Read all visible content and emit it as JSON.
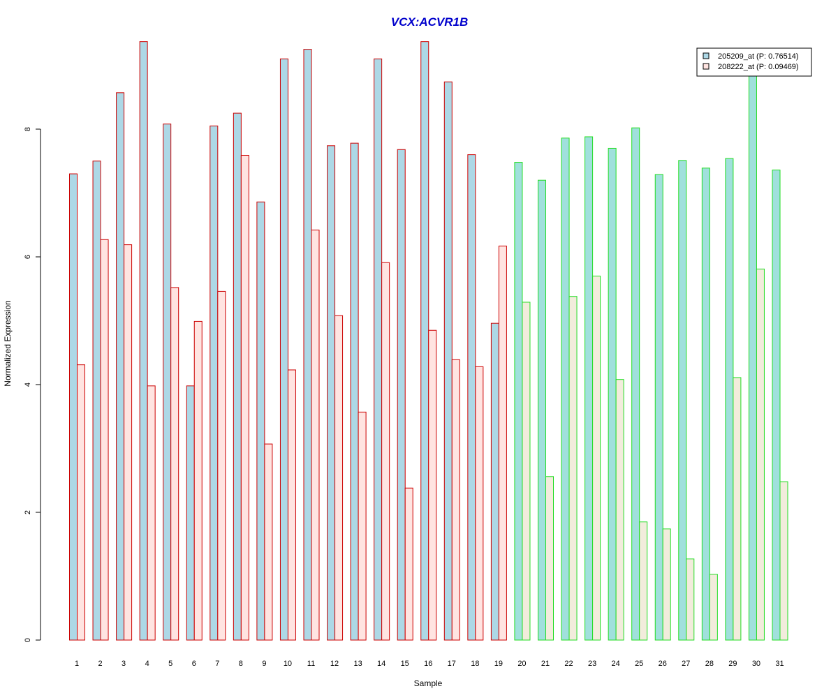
{
  "chart_data": {
    "type": "bar",
    "title": "VCX:ACVR1B",
    "title_color": "#0000cc",
    "xlabel": "Sample",
    "ylabel": "Normalized Expression",
    "ylim": [
      0,
      9.5
    ],
    "yticks": [
      0,
      2,
      4,
      6,
      8
    ],
    "grid": false,
    "legend_position": "top-right",
    "categories": [
      "1",
      "2",
      "3",
      "4",
      "5",
      "6",
      "7",
      "8",
      "9",
      "10",
      "11",
      "12",
      "13",
      "14",
      "15",
      "16",
      "17",
      "18",
      "19",
      "20",
      "21",
      "22",
      "23",
      "24",
      "25",
      "26",
      "27",
      "28",
      "29",
      "30",
      "31"
    ],
    "group_border_colors": [
      "#cc0000",
      "#cc0000",
      "#cc0000",
      "#cc0000",
      "#cc0000",
      "#cc0000",
      "#cc0000",
      "#cc0000",
      "#cc0000",
      "#cc0000",
      "#cc0000",
      "#cc0000",
      "#cc0000",
      "#cc0000",
      "#cc0000",
      "#cc0000",
      "#cc0000",
      "#cc0000",
      "#cc0000",
      "#22dd22",
      "#22dd22",
      "#22dd22",
      "#22dd22",
      "#22dd22",
      "#22dd22",
      "#22dd22",
      "#22dd22",
      "#22dd22",
      "#22dd22",
      "#22dd22",
      "#22dd22"
    ],
    "series": [
      {
        "name": "205209_at (P: 0.76514)",
        "fill_group1": "#add8e6",
        "fill_group2": "#a0e0dc",
        "values": [
          7.3,
          7.5,
          8.57,
          9.37,
          8.08,
          3.98,
          8.05,
          8.25,
          6.86,
          9.1,
          9.25,
          7.74,
          7.78,
          9.1,
          7.68,
          9.37,
          8.74,
          7.6,
          4.96,
          7.48,
          7.2,
          7.86,
          7.88,
          7.7,
          8.02,
          7.29,
          7.51,
          7.39,
          7.54,
          8.9,
          7.36
        ]
      },
      {
        "name": "208222_at (P: 0.09469)",
        "fill_group1": "#ffe4e1",
        "fill_group2": "#f2ecdc",
        "values": [
          4.31,
          6.27,
          6.19,
          3.98,
          5.52,
          4.99,
          5.46,
          7.59,
          3.07,
          4.23,
          6.42,
          5.08,
          3.57,
          5.91,
          2.38,
          4.85,
          4.39,
          4.28,
          6.17,
          5.29,
          2.56,
          5.38,
          5.7,
          4.08,
          1.85,
          1.74,
          1.27,
          1.03,
          4.11,
          5.81,
          2.48
        ]
      }
    ]
  }
}
